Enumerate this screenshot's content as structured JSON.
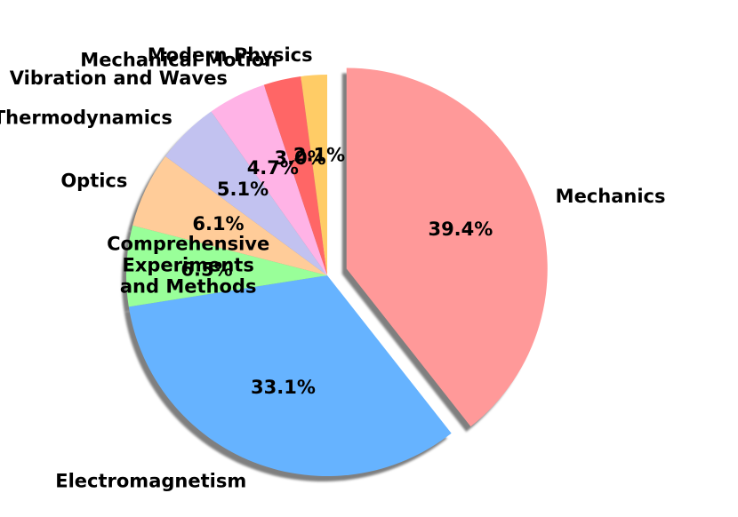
{
  "chart_data": {
    "type": "pie",
    "title": "",
    "categories": [
      "Mechanics",
      "Electromagnetism",
      "Comprehensive\nExperiments\nand Methods",
      "Optics",
      "Thermodynamics",
      "Vibration and Waves",
      "Mechanical Motion",
      "Modern Physics"
    ],
    "values": [
      39.4,
      33.1,
      6.5,
      6.1,
      5.1,
      4.7,
      3.0,
      2.1
    ],
    "value_labels": [
      "39.4%",
      "33.1%",
      "6.5%",
      "6.1%",
      "5.1%",
      "4.7%",
      "3.0%",
      "2.1%"
    ],
    "colors": [
      "#ff9999",
      "#66b3ff",
      "#99ff99",
      "#ffcc99",
      "#c2c2f0",
      "#ffb3e6",
      "#ff6666",
      "#ffcc66"
    ],
    "exploded": [
      "Mechanics"
    ],
    "start_angle": "90 degrees (top), clockwise",
    "shadow": true,
    "legend": "none"
  }
}
